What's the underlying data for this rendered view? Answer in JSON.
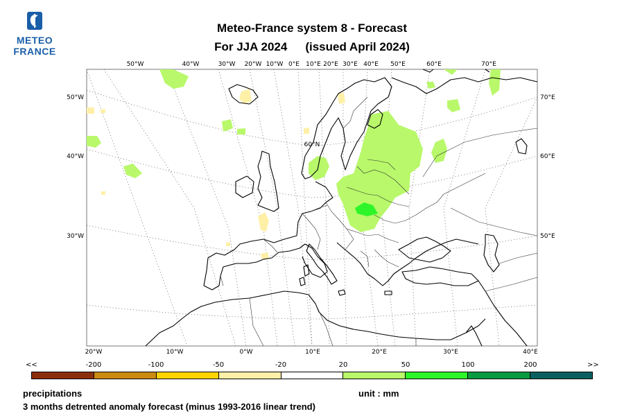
{
  "logo": {
    "line1": "METEO",
    "line2": "FRANCE",
    "colors": {
      "brand": "#1a5ea8"
    }
  },
  "title": {
    "line1": "Meteo-France system 8  -  Forecast",
    "period": "For JJA 2024",
    "issued": "(issued April 2024)"
  },
  "map": {
    "top_labels": [
      "50°W",
      "40°W",
      "30°W",
      "20°W",
      "10°W",
      "0°E",
      "10°E",
      "20°E",
      "30°E",
      "40°E",
      "50°E",
      "60°E",
      "70°E"
    ],
    "left_labels": [
      "50°W",
      "40°W",
      "30°W"
    ],
    "right_labels": [
      "70°E",
      "60°E",
      "50°E"
    ],
    "bottom_labels": [
      "20°W",
      "10°W",
      "0°W",
      "10°E",
      "20°E",
      "30°E",
      "40°E"
    ],
    "inner_label": "60°N"
  },
  "legend": {
    "left_arrow": "<<",
    "right_arrow": ">>",
    "ticks": [
      "-200",
      "-100",
      "-50",
      "-20",
      "20",
      "50",
      "100",
      "200"
    ],
    "colors": [
      "#8b2e0a",
      "#cc8a10",
      "#ffd400",
      "#fff0a8",
      "#ffffff",
      "#b8f86a",
      "#2ef52a",
      "#0a9a40",
      "#0a6060"
    ]
  },
  "footer": {
    "variable": "precipitations",
    "unit": "unit : mm",
    "description": "3 months detrented anomaly forecast (minus 1993-2016 linear trend)"
  }
}
